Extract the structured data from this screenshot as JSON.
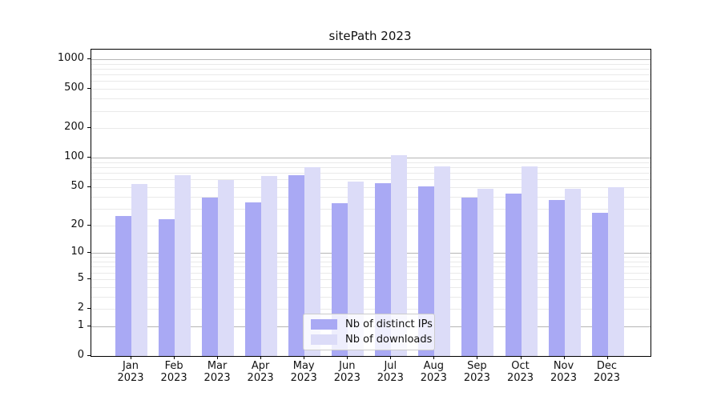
{
  "title": "sitePath 2023",
  "colors": {
    "ips_bar": "#a9a9f4",
    "downloads_bar": "#dcdcf8",
    "grid_major": "#b5b5b5",
    "grid_minor": "#e9e9e9",
    "axis": "#000000",
    "legend_border": "#cccccc"
  },
  "chart_data": {
    "type": "bar",
    "title": "sitePath 2023",
    "xlabel": "",
    "ylabel": "",
    "scale": "log1p",
    "grid": true,
    "legend_position": "lower center",
    "y_ticks": [
      0,
      1,
      2,
      5,
      10,
      20,
      50,
      100,
      200,
      500,
      1000
    ],
    "y_major_gridlines": [
      1,
      10,
      100,
      1000
    ],
    "ylim": [
      0,
      1251
    ],
    "categories": [
      "Jan",
      "Feb",
      "Mar",
      "Apr",
      "May",
      "Jun",
      "Jul",
      "Aug",
      "Sep",
      "Oct",
      "Nov",
      "Dec"
    ],
    "year": "2023",
    "series": [
      {
        "name": "Nb of distinct IPs",
        "key": "ips",
        "values": [
          25,
          23,
          39,
          35,
          66,
          34,
          55,
          51,
          39,
          43,
          37,
          27
        ]
      },
      {
        "name": "Nb of downloads",
        "key": "downloads",
        "values": [
          54,
          66,
          59,
          65,
          80,
          57,
          107,
          81,
          48,
          81,
          48,
          50
        ]
      }
    ]
  }
}
